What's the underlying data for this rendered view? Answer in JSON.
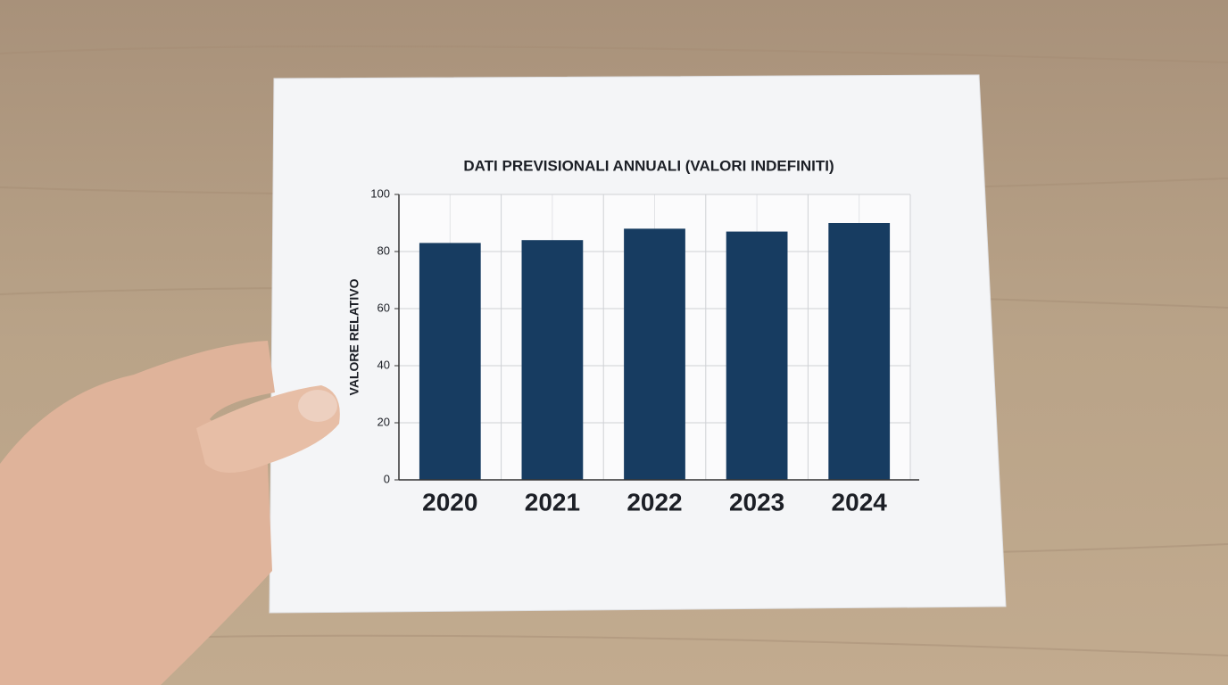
{
  "chart_data": {
    "type": "bar",
    "title": "DATI PREVISIONALI ANNUALI (VALORI INDEFINITI)",
    "y_label": "VALORE RELATIVO",
    "categories": [
      "2020",
      "2021",
      "2022",
      "2023",
      "2024"
    ],
    "values": [
      83,
      84,
      88,
      87,
      90
    ],
    "color": "#173c61",
    "ylim": [
      0,
      100
    ],
    "yticks": [
      0,
      20,
      40,
      60,
      80,
      100
    ],
    "grid": true
  }
}
